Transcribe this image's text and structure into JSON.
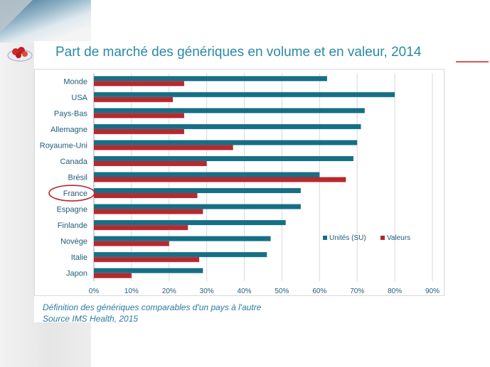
{
  "title": "Part de marché des génériques en volume et en valeur, 2014",
  "footnote": {
    "line1": "Définition  des génériques comparables d'un pays à l'autre",
    "line2": "Source IMS Health, 2015"
  },
  "colors": {
    "accent": "#2a8aa6",
    "series_units": "#166f86",
    "series_values": "#b8282e",
    "highlight_circle": "#b8282e"
  },
  "chart_data": {
    "type": "bar",
    "orientation": "horizontal",
    "title": "Part de marché des génériques en volume et en valeur, 2014",
    "categories": [
      "Monde",
      "USA",
      "Pays-Bas",
      "Allemagne",
      "Royaume-Uni",
      "Canada",
      "Brésil",
      "France",
      "Espagne",
      "Finlande",
      "Novège",
      "Italie",
      "Japon"
    ],
    "series": [
      {
        "name": "Unités (SU)",
        "color": "#166f86",
        "values": [
          62,
          80,
          72,
          71,
          70,
          69,
          60,
          55,
          55,
          51,
          47,
          46,
          29
        ]
      },
      {
        "name": "Valeurs",
        "color": "#b8282e",
        "values": [
          24,
          21,
          24,
          24,
          37,
          30,
          67,
          27.5,
          29,
          25,
          20,
          28,
          10
        ]
      }
    ],
    "xlim": [
      0,
      90
    ],
    "x_ticks": [
      "0%",
      "10%",
      "20%",
      "30%",
      "40%",
      "50%",
      "60%",
      "70%",
      "80%",
      "90%"
    ],
    "grid": true,
    "legend_position": "right",
    "highlighted_category": "France"
  }
}
